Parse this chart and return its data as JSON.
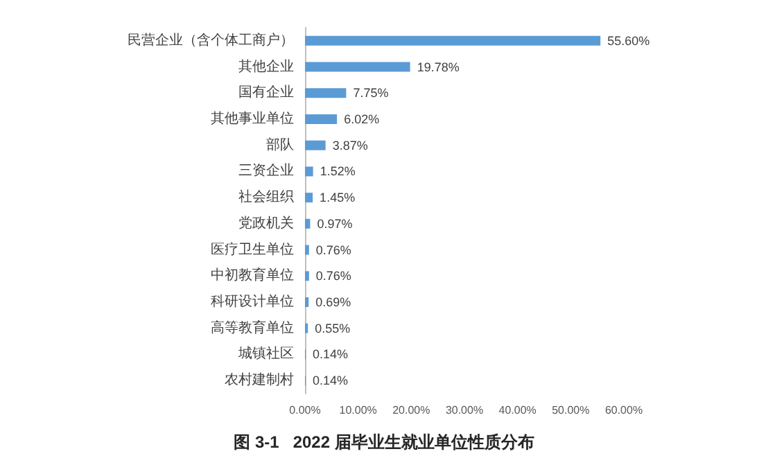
{
  "chart_data": {
    "type": "bar",
    "orientation": "horizontal",
    "title": "图 3-1   2022 届毕业生就业单位性质分布",
    "categories": [
      "民营企业（含个体工商户）",
      "其他企业",
      "国有企业",
      "其他事业单位",
      "部队",
      "三资企业",
      "社会组织",
      "党政机关",
      "医疗卫生单位",
      "中初教育单位",
      "科研设计单位",
      "高等教育单位",
      "城镇社区",
      "农村建制村"
    ],
    "values": [
      55.6,
      19.78,
      7.75,
      6.02,
      3.87,
      1.52,
      1.45,
      0.97,
      0.76,
      0.76,
      0.69,
      0.55,
      0.14,
      0.14
    ],
    "value_labels": [
      "55.60%",
      "19.78%",
      "7.75%",
      "6.02%",
      "3.87%",
      "1.52%",
      "1.45%",
      "0.97%",
      "0.76%",
      "0.76%",
      "0.69%",
      "0.55%",
      "0.14%",
      "0.14%"
    ],
    "color": "#5b9bd5",
    "xlim": [
      0,
      60
    ],
    "xticks": [
      {
        "value": 0,
        "label": "0.00%"
      },
      {
        "value": 10,
        "label": "10.00%"
      },
      {
        "value": 20,
        "label": "20.00%"
      },
      {
        "value": 30,
        "label": "30.00%"
      },
      {
        "value": 40,
        "label": "40.00%"
      },
      {
        "value": 50,
        "label": "50.00%"
      },
      {
        "value": 60,
        "label": "60.00%"
      }
    ],
    "grid": false
  }
}
